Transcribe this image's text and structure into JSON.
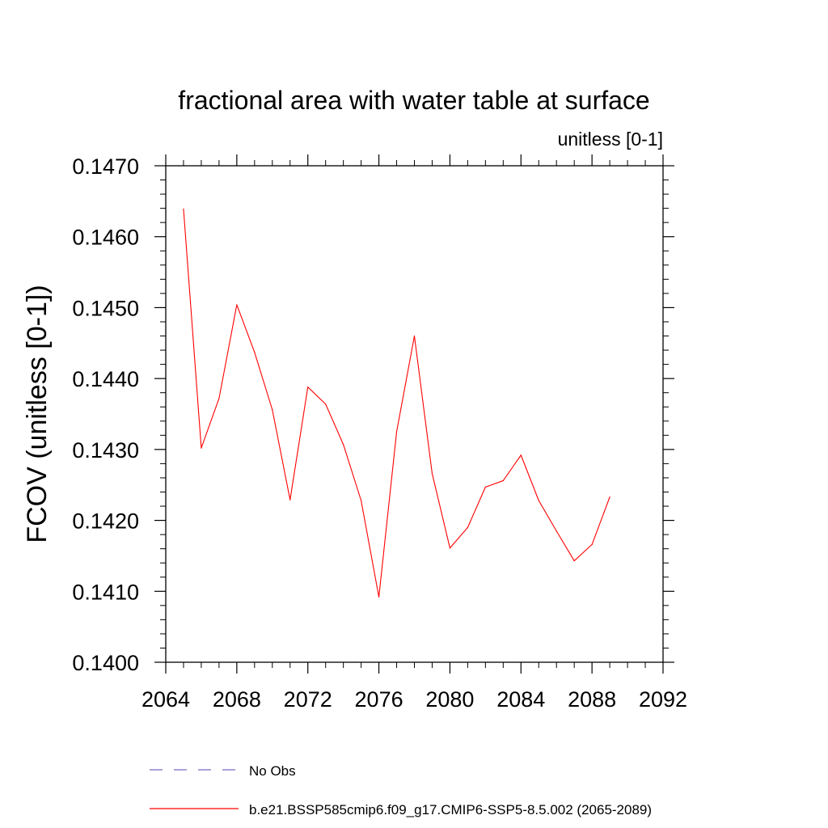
{
  "chart_data": {
    "type": "line",
    "title": "fractional area with water table at surface",
    "subtitle": "unitless [0-1]",
    "ylabel": "FCOV  (unitless [0-1])",
    "xlabel": "",
    "xlim": [
      2064,
      2092
    ],
    "ylim": [
      0.14,
      0.147
    ],
    "x_ticks": [
      2064,
      2068,
      2072,
      2076,
      2080,
      2084,
      2088,
      2092
    ],
    "y_ticks": [
      "0.1400",
      "0.1410",
      "0.1420",
      "0.1430",
      "0.1440",
      "0.1450",
      "0.1460",
      "0.1470"
    ],
    "x": [
      2065,
      2066,
      2067,
      2068,
      2069,
      2070,
      2071,
      2072,
      2073,
      2074,
      2075,
      2076,
      2077,
      2078,
      2079,
      2080,
      2081,
      2082,
      2083,
      2084,
      2085,
      2086,
      2087,
      2088,
      2089
    ],
    "series": [
      {
        "name": "b.e21.BSSP585cmip6.f09_g17.CMIP6-SSP5-8.5.002 (2065-2089)",
        "color": "#ff0000",
        "style": "solid",
        "values": [
          0.14639,
          0.14302,
          0.14372,
          0.14504,
          0.14437,
          0.14356,
          0.14229,
          0.14388,
          0.14364,
          0.14307,
          0.14228,
          0.14092,
          0.14325,
          0.1446,
          0.14266,
          0.14161,
          0.1419,
          0.14247,
          0.14256,
          0.14292,
          0.14228,
          0.14185,
          0.14143,
          0.14166,
          0.14233
        ]
      }
    ],
    "legend": [
      {
        "label": "No Obs",
        "color": "#7b68c8",
        "style": "dashed"
      },
      {
        "label": "b.e21.BSSP585cmip6.f09_g17.CMIP6-SSP5-8.5.002 (2065-2089)",
        "color": "#ff0000",
        "style": "solid"
      }
    ],
    "legend_position": "bottom"
  }
}
